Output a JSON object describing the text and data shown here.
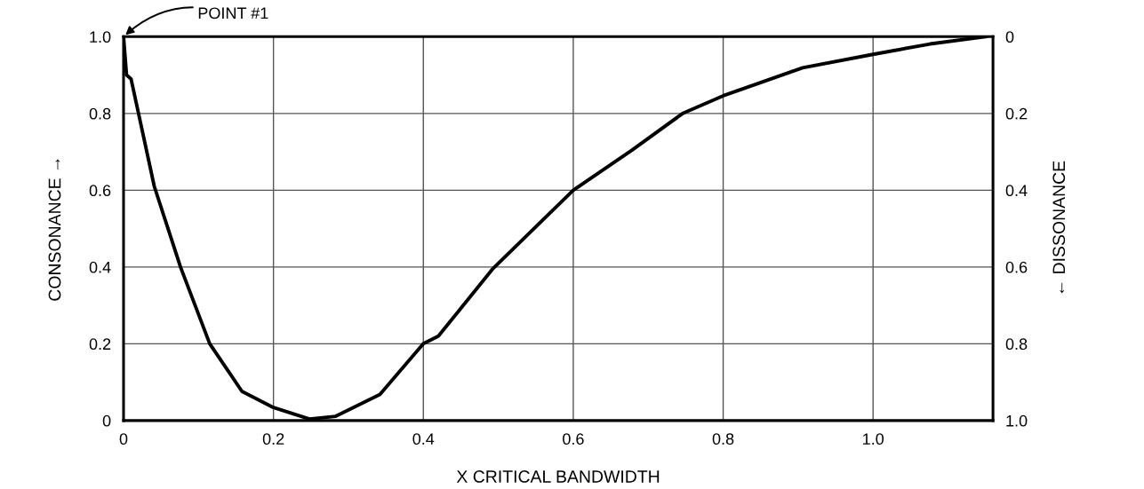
{
  "chart_data": {
    "type": "line",
    "xlabel": "X CRITICAL BANDWIDTH",
    "ylabel": "CONSONANCE →",
    "y2label": "← DISSONANCE",
    "x": [
      0,
      0.004,
      0.01,
      0.02,
      0.041,
      0.076,
      0.115,
      0.158,
      0.2,
      0.248,
      0.283,
      0.342,
      0.4,
      0.42,
      0.492,
      0.6,
      0.678,
      0.746,
      0.8,
      0.906,
      1.0,
      1.076,
      1.15
    ],
    "series": [
      {
        "color": "#000000",
        "values": [
          1.0,
          0.9,
          0.89,
          0.8,
          0.61,
          0.4,
          0.2,
          0.076,
          0.034,
          0.004,
          0.011,
          0.068,
          0.2,
          0.22,
          0.394,
          0.6,
          0.704,
          0.8,
          0.846,
          0.919,
          0.954,
          0.981,
          1.0
        ]
      }
    ],
    "xlim": [
      0,
      1.16
    ],
    "xticks": [
      0,
      0.2,
      0.4,
      0.6,
      0.8,
      {
        "value": 1.0,
        "label": "1.0"
      }
    ],
    "ylim": [
      0,
      1.0
    ],
    "yticks": [
      0,
      0.2,
      0.4,
      0.6,
      0.8,
      {
        "value": 1.0,
        "label": "1.0"
      }
    ],
    "y2lim": [
      1.0,
      0
    ],
    "y2ticks": [
      0,
      0.2,
      0.4,
      0.6,
      0.8,
      {
        "value": 1.0,
        "label": "1.0"
      }
    ],
    "annotations": [
      {
        "text": "POINT #1",
        "x": 0,
        "y": 1.0
      }
    ],
    "grid": true,
    "legend": false
  }
}
